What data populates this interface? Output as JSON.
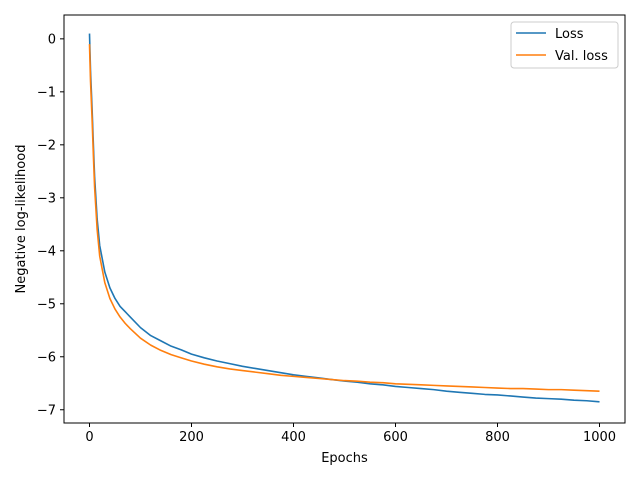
{
  "chart_data": {
    "type": "line",
    "xlabel": "Epochs",
    "ylabel": "Negative log-likelihood",
    "xlim": [
      -50,
      1050
    ],
    "ylim": [
      -7.25,
      0.45
    ],
    "xticks": [
      0,
      200,
      400,
      600,
      800,
      1000
    ],
    "yticks": [
      0,
      -1,
      -2,
      -3,
      -4,
      -5,
      -6,
      -7
    ],
    "xtick_labels": [
      "0",
      "200",
      "400",
      "600",
      "800",
      "1000"
    ],
    "ytick_labels": [
      "0",
      "−1",
      "−2",
      "−3",
      "−4",
      "−5",
      "−6",
      "−7"
    ],
    "grid": false,
    "legend_position": "top-right",
    "series": [
      {
        "name": "Loss",
        "color": "#1f77b4",
        "x": [
          0,
          2,
          5,
          8,
          10,
          15,
          20,
          30,
          40,
          50,
          60,
          70,
          80,
          100,
          120,
          140,
          160,
          180,
          200,
          225,
          250,
          275,
          300,
          325,
          350,
          375,
          400,
          425,
          450,
          475,
          500,
          525,
          550,
          575,
          600,
          625,
          650,
          675,
          700,
          725,
          750,
          775,
          800,
          825,
          850,
          875,
          900,
          925,
          950,
          975,
          1000
        ],
        "y": [
          0.1,
          -0.6,
          -1.3,
          -2.1,
          -2.6,
          -3.4,
          -3.9,
          -4.4,
          -4.7,
          -4.9,
          -5.05,
          -5.15,
          -5.25,
          -5.45,
          -5.6,
          -5.7,
          -5.8,
          -5.87,
          -5.95,
          -6.02,
          -6.08,
          -6.13,
          -6.18,
          -6.22,
          -6.26,
          -6.3,
          -6.34,
          -6.37,
          -6.4,
          -6.43,
          -6.46,
          -6.48,
          -6.51,
          -6.53,
          -6.56,
          -6.58,
          -6.6,
          -6.62,
          -6.65,
          -6.67,
          -6.69,
          -6.71,
          -6.72,
          -6.74,
          -6.76,
          -6.78,
          -6.79,
          -6.8,
          -6.82,
          -6.83,
          -6.85
        ]
      },
      {
        "name": "Val. loss",
        "color": "#ff7f0e",
        "x": [
          0,
          2,
          5,
          8,
          10,
          15,
          20,
          30,
          40,
          50,
          60,
          70,
          80,
          100,
          120,
          140,
          160,
          180,
          200,
          225,
          250,
          275,
          300,
          325,
          350,
          375,
          400,
          425,
          450,
          475,
          500,
          525,
          550,
          575,
          600,
          625,
          650,
          675,
          700,
          725,
          750,
          775,
          800,
          825,
          850,
          875,
          900,
          925,
          950,
          975,
          1000
        ],
        "y": [
          -0.1,
          -0.8,
          -1.5,
          -2.3,
          -2.8,
          -3.6,
          -4.1,
          -4.6,
          -4.9,
          -5.1,
          -5.25,
          -5.37,
          -5.47,
          -5.65,
          -5.78,
          -5.88,
          -5.96,
          -6.02,
          -6.08,
          -6.14,
          -6.19,
          -6.23,
          -6.26,
          -6.29,
          -6.32,
          -6.35,
          -6.37,
          -6.39,
          -6.41,
          -6.43,
          -6.45,
          -6.46,
          -6.48,
          -6.49,
          -6.51,
          -6.52,
          -6.53,
          -6.54,
          -6.55,
          -6.56,
          -6.57,
          -6.58,
          -6.59,
          -6.6,
          -6.6,
          -6.61,
          -6.62,
          -6.62,
          -6.63,
          -6.64,
          -6.65
        ]
      }
    ]
  }
}
